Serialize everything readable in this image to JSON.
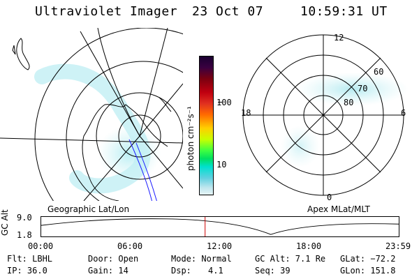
{
  "header": {
    "title": "Ultraviolet Imager",
    "date": "23 Oct 07",
    "time": "10:59:31 UT"
  },
  "colorbar": {
    "unit_label": "photon cm⁻²s⁻¹",
    "ticks": [
      "100",
      "10"
    ]
  },
  "right_map": {
    "mlt_labels": {
      "top": "12",
      "bottom": "0",
      "left": "18",
      "right": "6"
    },
    "lat_labels": [
      "60",
      "70",
      "80"
    ],
    "caption": "Apex MLat/MLT"
  },
  "left_map": {
    "caption": "Geographic Lat/Lon"
  },
  "timeline": {
    "axis_label": "GC Alt",
    "y_ticks": [
      "9.0",
      "1.8"
    ],
    "x_ticks": [
      "00:00",
      "06:00",
      "12:00",
      "18:00",
      "23:59"
    ],
    "current_time_fraction": 0.4583,
    "marker_color": "#cc0000"
  },
  "footer": {
    "filter": "Flt: LBHL",
    "ip": "IP: 36.0",
    "door": "Door: Open",
    "gain": "Gain: 14",
    "mode": "Mode: Normal",
    "dsp_label": "Dsp:",
    "dsp_value": "4.1",
    "gc_alt": "GC Alt: 7.1 Re",
    "seq": "Seq: 39",
    "glat": "GLat: −72.2",
    "glon": "GLon: 151.8"
  },
  "colors": {
    "aurora": "#9fe6ee",
    "line": "#000000",
    "track": "#1a1aff"
  }
}
